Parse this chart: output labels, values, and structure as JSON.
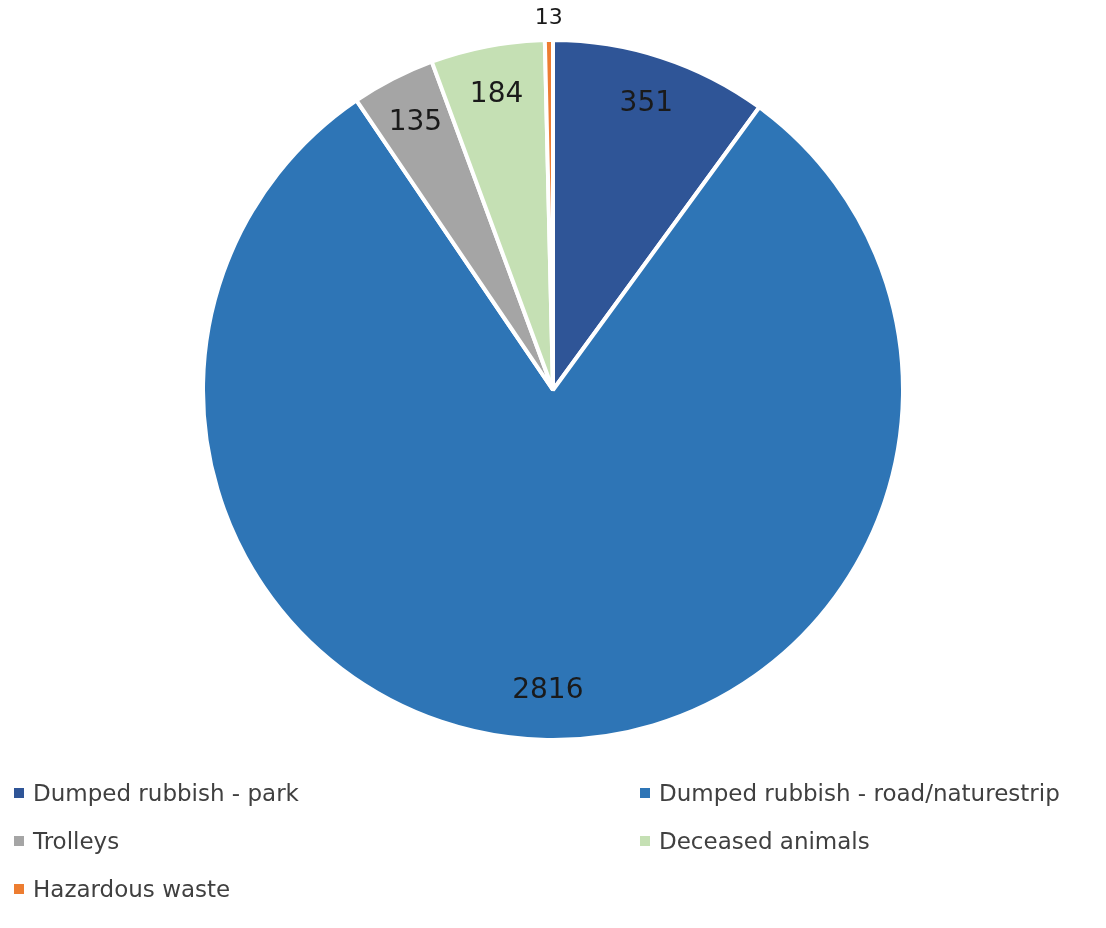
{
  "chart_data": {
    "type": "pie",
    "categories": [
      "Dumped rubbish - park",
      "Dumped rubbish - road/naturestrip",
      "Trolleys",
      "Deceased animals",
      "Hazardous waste"
    ],
    "values": [
      351,
      2816,
      135,
      184,
      13
    ],
    "colors": [
      "#2f5597",
      "#2e75b6",
      "#a5a5a5",
      "#c5e0b4",
      "#ed7d31"
    ],
    "data_labels": true,
    "legend": "bottom"
  }
}
